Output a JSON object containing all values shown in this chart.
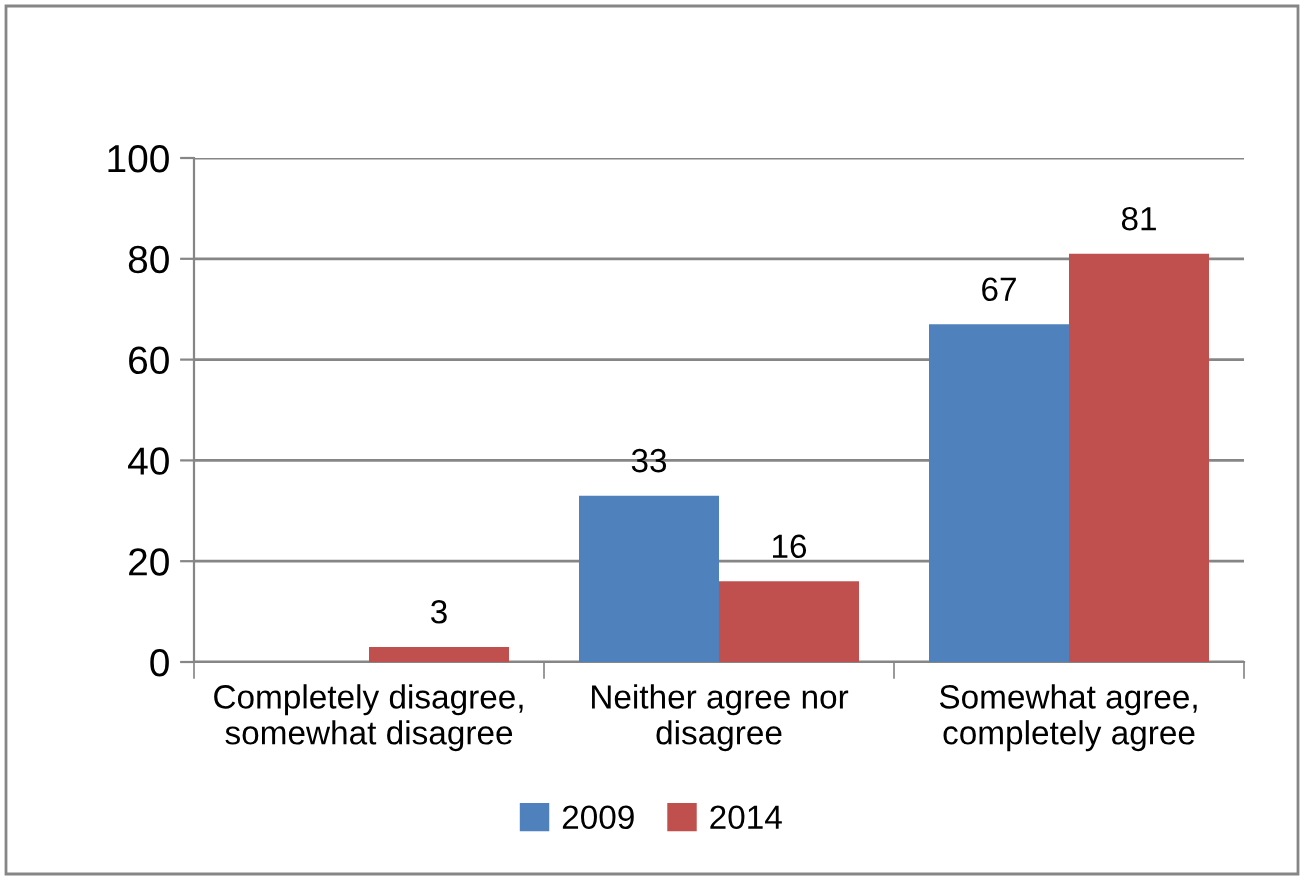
{
  "chart_data": {
    "type": "bar",
    "categories": [
      "Completely disagree, somewhat disagree",
      "Neither agree nor disagree",
      "Somewhat agree, completely agree"
    ],
    "series": [
      {
        "name": "2009",
        "color": "#4f81bd",
        "values": [
          null,
          33,
          67
        ]
      },
      {
        "name": "2014",
        "color": "#c0504d",
        "values": [
          3,
          16,
          81
        ]
      }
    ],
    "ylim": [
      0,
      100
    ],
    "yticks": [
      0,
      20,
      40,
      60,
      80,
      100
    ],
    "grid": "y",
    "legend": "bottom",
    "data_labels": true
  }
}
